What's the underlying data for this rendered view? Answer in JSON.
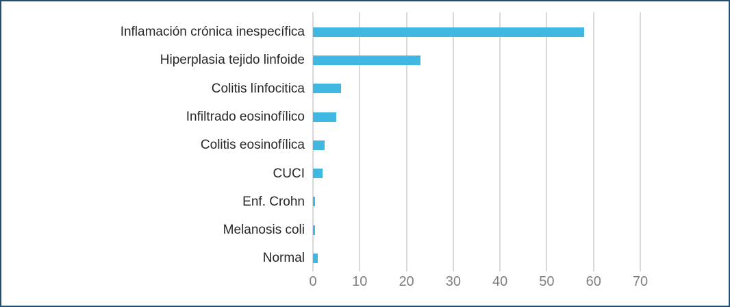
{
  "chart_data": {
    "type": "bar",
    "orientation": "horizontal",
    "title": "",
    "xlabel": "",
    "ylabel": "",
    "categories": [
      "Inflamación crónica inespecífica",
      "Hiperplasia tejido linfoide",
      "Colitis línfocitica",
      "Infiltrado eosinofílico",
      "Colitis eosinofílica",
      "CUCI",
      "Enf. Crohn",
      "Melanosis coli",
      "Normal"
    ],
    "values": [
      58,
      23,
      6,
      5,
      2.5,
      2,
      0.5,
      0.5,
      1
    ],
    "x_ticks": [
      0,
      10,
      20,
      30,
      40,
      50,
      60,
      70
    ],
    "xlim": [
      0,
      70
    ],
    "grid": "vertical",
    "legend": "none",
    "bar_color": "#41B8E1",
    "grid_color": "#D9D9D9",
    "tick_label_color": "#808080",
    "category_label_color": "#262626",
    "frame_border_color": "#1F4E79"
  }
}
